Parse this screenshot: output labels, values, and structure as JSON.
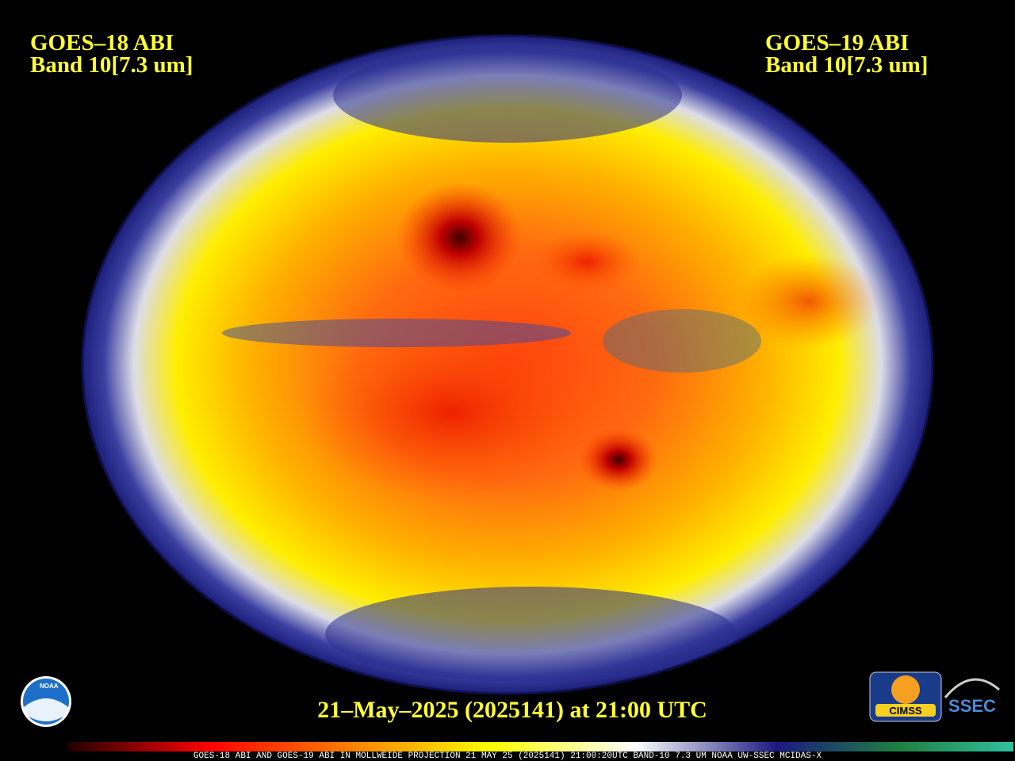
{
  "header": {
    "left": {
      "satellite": "GOES–18 ABI",
      "band": "Band 10[7.3 um]"
    },
    "right": {
      "satellite": "GOES–19 ABI",
      "band": "Band 10[7.3 um]"
    }
  },
  "timestamp": "21–May–2025 (2025141) at 21:00 UTC",
  "footer": "GOES-18 ABI AND GOES-19 ABI IN MOLLWEIDE PROJECTION 21 MAY 25 (2025141) 21:00:20UTC BAND-10 7.3 UM NOAA UW-SSEC MCIDAS-X",
  "logos": {
    "noaa": "NOAA",
    "cimss": "CIMSS",
    "ssec": "SSEC"
  }
}
